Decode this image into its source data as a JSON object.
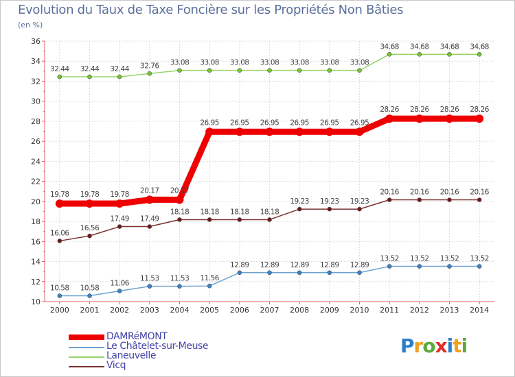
{
  "title": "Evolution du Taux de Taxe Foncière sur les Propriétés Non Bâties",
  "unit_label": "(en %)",
  "brand": "Proxiti",
  "chart_data": {
    "type": "line",
    "title": "Evolution du Taux de Taxe Foncière sur les Propriétés Non Bâties",
    "ylabel": "(en %)",
    "xlabel": "",
    "ylim": [
      10,
      36
    ],
    "yticks": [
      10,
      12,
      14,
      16,
      18,
      20,
      22,
      24,
      26,
      28,
      30,
      32,
      34,
      36
    ],
    "grid": true,
    "legend_position": "bottom-left",
    "categories": [
      "2000",
      "2001",
      "2002",
      "2003",
      "2004",
      "2005",
      "2006",
      "2007",
      "2008",
      "2009",
      "2010",
      "2011",
      "2012",
      "2013",
      "2014"
    ],
    "series": [
      {
        "name": "DAMRéMONT",
        "color": "#ee0000",
        "marker": "#ee0000",
        "emphasis": true,
        "values": [
          19.78,
          19.78,
          19.78,
          20.17,
          20.17,
          26.95,
          26.95,
          26.95,
          26.95,
          26.95,
          26.95,
          28.26,
          28.26,
          28.26,
          28.26
        ],
        "labels": [
          "19.78",
          "19.78",
          "19.78",
          "20.17",
          "20.17",
          "26.95",
          "26.95",
          "26.95",
          "26.95",
          "26.95",
          "26.95",
          "28.26",
          "28.26",
          "28.26",
          "28.26"
        ]
      },
      {
        "name": "Le Châtelet-sur-Meuse",
        "color": "#6fa2cc",
        "marker": "#3f83c4",
        "emphasis": false,
        "values": [
          10.58,
          10.58,
          11.06,
          11.53,
          11.53,
          11.56,
          12.89,
          12.89,
          12.89,
          12.89,
          12.89,
          13.52,
          13.52,
          13.52,
          13.52
        ],
        "labels": [
          "10.58",
          "10.58",
          "11.06",
          "11.53",
          "11.53",
          "11.56",
          "12.89",
          "12.89",
          "12.89",
          "12.89",
          "12.89",
          "13.52",
          "13.52",
          "13.52",
          "13.52"
        ]
      },
      {
        "name": "Laneuvelle",
        "color": "#98d36a",
        "marker": "#78c23c",
        "emphasis": false,
        "values": [
          32.44,
          32.44,
          32.44,
          32.76,
          33.08,
          33.08,
          33.08,
          33.08,
          33.08,
          33.08,
          33.08,
          34.68,
          34.68,
          34.68,
          34.68
        ],
        "labels": [
          "32.44",
          "32.44",
          "32.44",
          "32.76",
          "33.08",
          "33.08",
          "33.08",
          "33.08",
          "33.08",
          "33.08",
          "33.08",
          "34.68",
          "34.68",
          "34.68",
          "34.68"
        ]
      },
      {
        "name": "Vicq",
        "color": "#7a3030",
        "marker": "#6a1a1a",
        "emphasis": false,
        "values": [
          16.06,
          16.56,
          17.49,
          17.49,
          18.18,
          18.18,
          18.18,
          18.18,
          19.23,
          19.23,
          19.23,
          20.16,
          20.16,
          20.16,
          20.16
        ],
        "labels": [
          "16.06",
          "16.56",
          "17.49",
          "17.49",
          "18.18",
          "18.18",
          "18.18",
          "18.18",
          "19.23",
          "19.23",
          "19.23",
          "20.16",
          "20.16",
          "20.16",
          "20.16"
        ]
      }
    ]
  }
}
